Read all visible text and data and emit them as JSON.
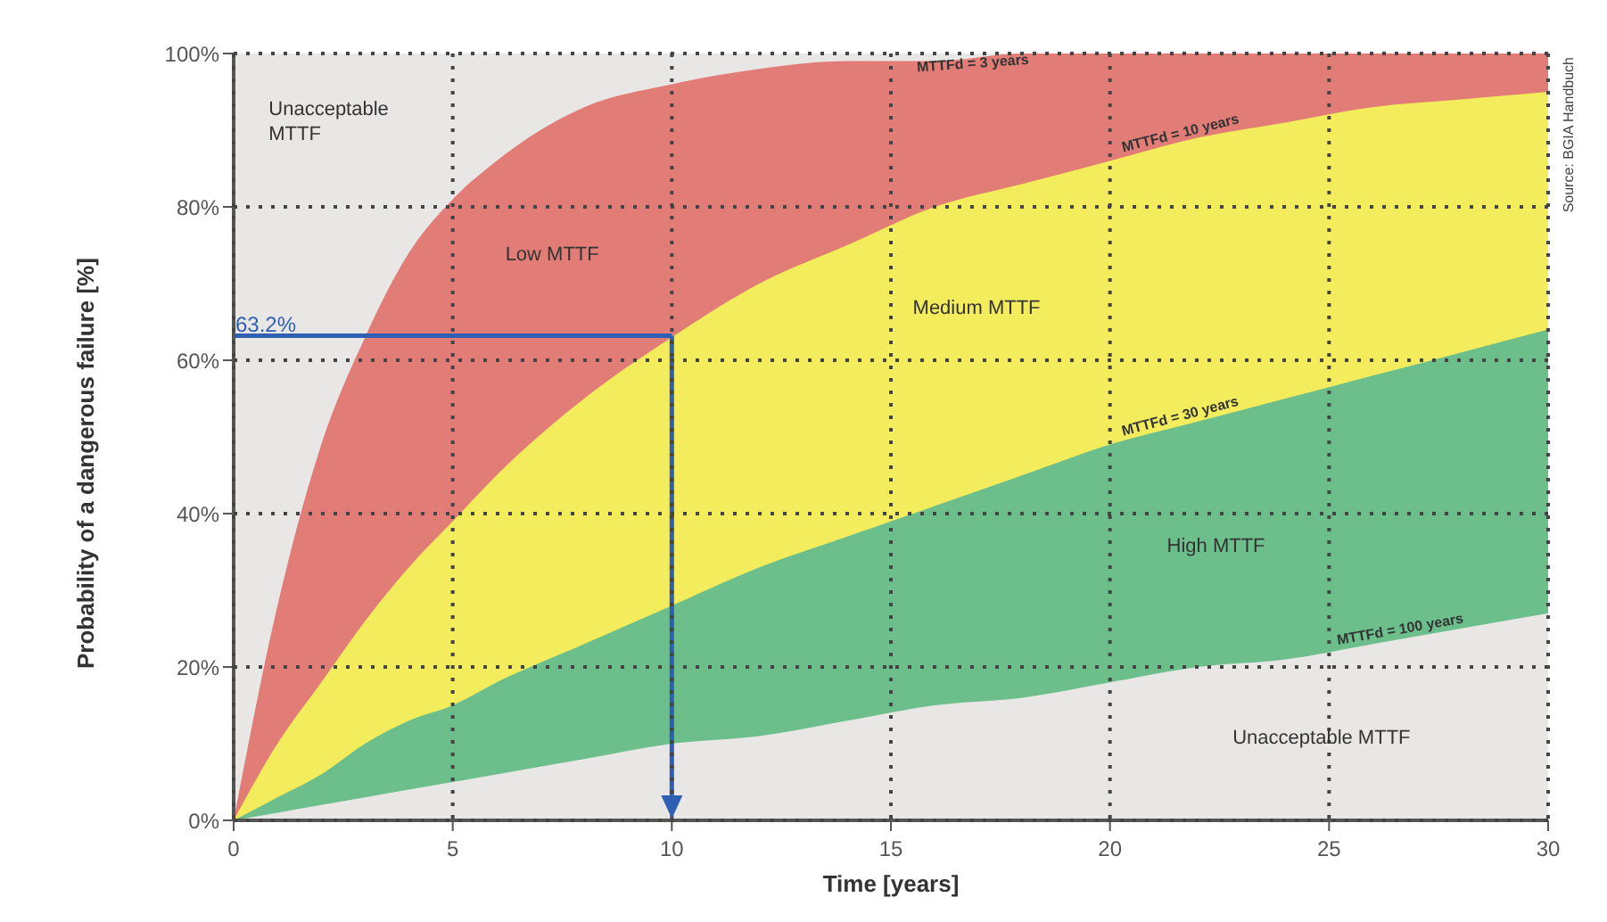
{
  "chart_data": {
    "type": "area",
    "xlabel": "Time [years]",
    "ylabel": "Probability of a dangerous failure [%]",
    "x": [
      0,
      1,
      2,
      3,
      4,
      5,
      6,
      8,
      10,
      12,
      14,
      16,
      18,
      20,
      22,
      24,
      26,
      28,
      30
    ],
    "series": [
      {
        "name": "MTTFd = 3 years",
        "color": "#e27c76",
        "values": [
          0,
          28,
          49,
          63,
          74,
          81,
          86,
          93,
          96,
          98,
          99,
          99,
          100,
          100,
          100,
          100,
          100,
          100,
          100
        ]
      },
      {
        "name": "MTTFd = 10 years",
        "color": "#f3ec5c",
        "values": [
          0,
          10,
          18,
          26,
          33,
          39,
          45,
          55,
          63,
          70,
          75,
          80,
          83,
          86,
          89,
          91,
          93,
          94,
          95
        ]
      },
      {
        "name": "MTTFd = 30 years",
        "color": "#6cbf8b",
        "values": [
          0,
          3,
          6,
          10,
          13,
          15,
          18,
          23,
          28,
          33,
          37,
          41,
          45,
          49,
          52,
          55,
          58,
          61,
          64
        ]
      },
      {
        "name": "MTTFd = 100 years",
        "color": "#e9e6e6",
        "values": [
          0,
          1,
          2,
          3,
          4,
          5,
          6,
          8,
          10,
          11,
          13,
          15,
          16,
          18,
          20,
          21,
          23,
          25,
          27
        ]
      }
    ],
    "xlim": [
      0,
      30
    ],
    "xticks": [
      0,
      5,
      10,
      15,
      20,
      25,
      30
    ],
    "ylim": [
      0,
      100
    ],
    "yticks": [
      {
        "value": 0,
        "label": "0%"
      },
      {
        "value": 20,
        "label": "20%"
      },
      {
        "value": 40,
        "label": "40%"
      },
      {
        "value": 60,
        "label": "60%"
      },
      {
        "value": 80,
        "label": "80%"
      },
      {
        "value": 100,
        "label": "100%"
      }
    ],
    "grid": true,
    "line_style": "dotted",
    "ref_lines": [
      {
        "axis": "y",
        "value": 63.2,
        "label": "63.2%",
        "color": "#2f5fb3"
      },
      {
        "axis": "x",
        "value": 10,
        "color": "#2f5fb3"
      }
    ],
    "annotations": [
      "Unacceptable\nMTTF",
      "Low MTTF",
      "Medium MTTF",
      "High MTTF",
      "Unacceptable MTTF",
      "Source: BGIA Handbuch"
    ]
  }
}
